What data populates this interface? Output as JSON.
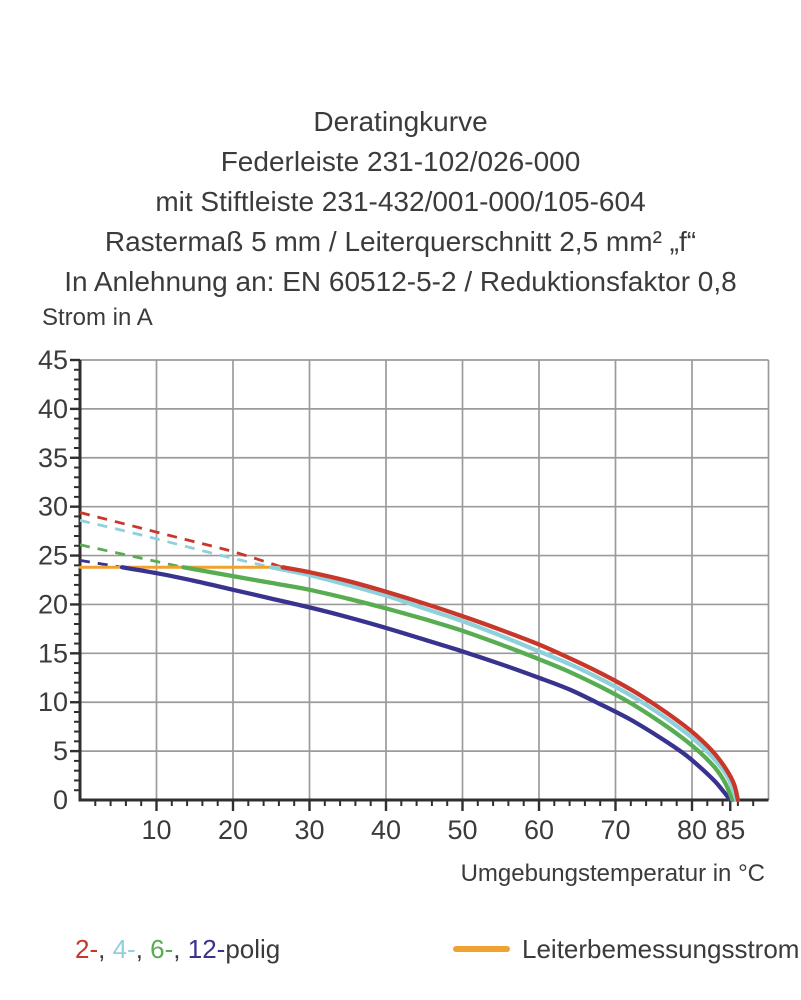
{
  "title": {
    "line1": "Deratingkurve",
    "line2": "Federleiste 231-102/026-000",
    "line3": "mit Stiftleiste 231-432/001-000/105-604",
    "line4": "Rastermaß 5 mm / Leiterquerschnitt 2,5 mm² „f“",
    "line5": "In Anlehnung an: EN 60512-5-2 / Reduktionsfaktor 0,8"
  },
  "chart_data": {
    "type": "line",
    "ylabel": "Strom in A",
    "xlabel": "Umgebungstemperatur in °C",
    "xlim": [
      0,
      90
    ],
    "ylim": [
      0,
      45
    ],
    "x_major_ticks": [
      10,
      20,
      30,
      40,
      50,
      60,
      70,
      80,
      85
    ],
    "y_major_ticks": [
      0,
      5,
      10,
      15,
      20,
      25,
      30,
      35,
      40,
      45
    ],
    "x_minor_step": 2,
    "y_minor_step": 1,
    "x_gridlines": [
      10,
      20,
      30,
      40,
      50,
      60,
      70,
      80,
      90
    ],
    "y_gridlines": [
      5,
      10,
      15,
      20,
      25,
      30,
      35,
      40,
      45
    ],
    "grid_color": "#9b9b9b",
    "axis_color": "#2f2f2f",
    "rated_current": {
      "label": "Leiterbemessungsstrom",
      "value": 23.8,
      "x_start": 0,
      "x_end": 26,
      "color": "#efa22f"
    },
    "series": [
      {
        "name": "2-polig",
        "color": "#c9372a",
        "dashed": [
          [
            0,
            29.4
          ],
          [
            7,
            28.0
          ],
          [
            14,
            26.6
          ],
          [
            20,
            25.4
          ],
          [
            26.5,
            23.8
          ]
        ],
        "solid": [
          [
            26.5,
            23.8
          ],
          [
            30,
            23.3
          ],
          [
            35,
            22.4
          ],
          [
            40,
            21.3
          ],
          [
            45,
            20.1
          ],
          [
            50,
            18.8
          ],
          [
            55,
            17.4
          ],
          [
            60,
            15.9
          ],
          [
            64,
            14.5
          ],
          [
            68,
            13.0
          ],
          [
            72,
            11.3
          ],
          [
            76,
            9.3
          ],
          [
            79,
            7.6
          ],
          [
            81,
            6.3
          ],
          [
            83,
            4.7
          ],
          [
            84.5,
            3.1
          ],
          [
            85.5,
            1.6
          ],
          [
            86,
            0
          ]
        ]
      },
      {
        "name": "4-polig",
        "color": "#8ed1da",
        "dashed": [
          [
            0,
            28.6
          ],
          [
            7,
            27.3
          ],
          [
            13,
            26.1
          ],
          [
            19,
            24.9
          ],
          [
            25,
            23.8
          ]
        ],
        "solid": [
          [
            25,
            23.8
          ],
          [
            30,
            23.0
          ],
          [
            35,
            22.0
          ],
          [
            40,
            20.9
          ],
          [
            45,
            19.6
          ],
          [
            50,
            18.3
          ],
          [
            55,
            16.8
          ],
          [
            60,
            15.2
          ],
          [
            64,
            13.9
          ],
          [
            68,
            12.4
          ],
          [
            72,
            10.7
          ],
          [
            76,
            8.7
          ],
          [
            79,
            7.0
          ],
          [
            81,
            5.7
          ],
          [
            83,
            4.1
          ],
          [
            84.5,
            2.6
          ],
          [
            85.3,
            1.2
          ],
          [
            85.8,
            0
          ]
        ]
      },
      {
        "name": "6-polig",
        "color": "#58ac52",
        "dashed": [
          [
            0,
            26.1
          ],
          [
            7,
            24.9
          ],
          [
            13.5,
            23.8
          ]
        ],
        "solid": [
          [
            13.5,
            23.8
          ],
          [
            20,
            22.9
          ],
          [
            25,
            22.2
          ],
          [
            30,
            21.5
          ],
          [
            35,
            20.6
          ],
          [
            40,
            19.6
          ],
          [
            45,
            18.5
          ],
          [
            50,
            17.3
          ],
          [
            55,
            15.9
          ],
          [
            60,
            14.4
          ],
          [
            64,
            13.1
          ],
          [
            68,
            11.6
          ],
          [
            72,
            9.9
          ],
          [
            76,
            7.9
          ],
          [
            79,
            6.2
          ],
          [
            81,
            4.9
          ],
          [
            83,
            3.3
          ],
          [
            84.3,
            1.8
          ],
          [
            85.3,
            0
          ]
        ]
      },
      {
        "name": "12-polig",
        "color": "#37338e",
        "dashed": [
          [
            0,
            24.5
          ],
          [
            5.5,
            23.8
          ]
        ],
        "solid": [
          [
            5.5,
            23.8
          ],
          [
            10,
            23.2
          ],
          [
            15,
            22.4
          ],
          [
            20,
            21.5
          ],
          [
            25,
            20.6
          ],
          [
            30,
            19.7
          ],
          [
            35,
            18.7
          ],
          [
            40,
            17.6
          ],
          [
            45,
            16.4
          ],
          [
            50,
            15.2
          ],
          [
            55,
            13.9
          ],
          [
            60,
            12.5
          ],
          [
            64,
            11.3
          ],
          [
            68,
            9.8
          ],
          [
            72,
            8.2
          ],
          [
            76,
            6.3
          ],
          [
            79,
            4.7
          ],
          [
            81,
            3.4
          ],
          [
            83,
            1.9
          ],
          [
            84.3,
            0.7
          ],
          [
            85,
            0
          ]
        ]
      }
    ]
  },
  "legend": {
    "poles": [
      {
        "label": "2-",
        "color": "#c9372a"
      },
      {
        "label": "4-",
        "color": "#8ed1da"
      },
      {
        "label": "6-",
        "color": "#58ac52"
      },
      {
        "label": "12-",
        "color": "#37338e"
      }
    ],
    "separator": ", ",
    "suffix": "polig",
    "rated_label": "Leiterbemessungsstrom"
  }
}
